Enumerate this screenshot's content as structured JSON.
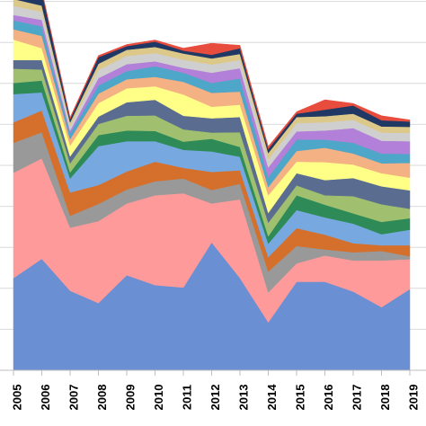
{
  "chart_data": {
    "type": "area",
    "stacked": true,
    "x": [
      "2005",
      "2006",
      "2007",
      "2008",
      "2009",
      "2010",
      "2011",
      "2012",
      "2013",
      "2014",
      "2015",
      "2016",
      "2017",
      "2018",
      "2019"
    ],
    "ylim": [
      0,
      100
    ],
    "grid": true,
    "legend": "none",
    "series": [
      {
        "color": "#6a8fd3",
        "values": [
          22.5,
          27.2,
          19.4,
          16.4,
          23.2,
          20.8,
          20.2,
          31.2,
          22.5,
          11.7,
          21.6,
          21.6,
          19.2,
          15.4,
          19.8
        ]
      },
      {
        "color": "#ff9a9a",
        "values": [
          25.7,
          24.5,
          15.4,
          20.0,
          17.5,
          21.9,
          23.0,
          9.5,
          19.2,
          7.3,
          4.5,
          6.4,
          7.6,
          11.4,
          7.3
        ]
      },
      {
        "color": "#999999",
        "values": [
          7.3,
          6.4,
          2.9,
          4.2,
          3.4,
          3.4,
          3.6,
          3.3,
          3.8,
          5.1,
          4.2,
          1.5,
          2.0,
          2.3,
          0.7
        ]
      },
      {
        "color": "#d4702c",
        "values": [
          5.0,
          5.3,
          5.7,
          4.6,
          4.4,
          4.8,
          2.6,
          4.4,
          3.3,
          3.5,
          4.4,
          3.6,
          2.2,
          1.4,
          2.7
        ]
      },
      {
        "color": "#77a9e0",
        "values": [
          6.9,
          4.4,
          3.4,
          9.5,
          7.4,
          5.0,
          4.4,
          5.0,
          3.3,
          3.3,
          4.4,
          4.2,
          4.8,
          2.7,
          3.8
        ]
      },
      {
        "color": "#2e8b57",
        "values": [
          2.7,
          2.9,
          1.5,
          2.7,
          2.6,
          2.5,
          2.0,
          3.1,
          2.4,
          1.8,
          3.6,
          3.1,
          2.5,
          3.0,
          2.8
        ]
      },
      {
        "color": "#a0c070",
        "values": [
          3.5,
          2.7,
          2.2,
          2.7,
          3.6,
          3.8,
          3.0,
          1.5,
          3.6,
          3.3,
          2.4,
          2.3,
          4.2,
          4.3,
          2.3
        ]
      },
      {
        "color": "#5a6d90",
        "values": [
          2.1,
          2.3,
          1.7,
          1.8,
          3.3,
          3.8,
          3.3,
          3.5,
          3.7,
          2.4,
          3.0,
          3.7,
          4.4,
          4.4,
          4.5
        ]
      },
      {
        "color": "#ffff88",
        "values": [
          5.0,
          2.9,
          2.6,
          3.3,
          3.4,
          3.3,
          5.2,
          2.8,
          3.0,
          4.3,
          2.8,
          4.4,
          3.3,
          3.2,
          3.1
        ]
      },
      {
        "color": "#f4b183",
        "values": [
          2.5,
          3.0,
          1.6,
          2.3,
          2.2,
          2.3,
          3.1,
          3.4,
          3.2,
          2.0,
          2.6,
          3.5,
          2.7,
          2.4,
          3.6
        ]
      },
      {
        "color": "#4ea6c8",
        "values": [
          2.2,
          2.3,
          1.4,
          2.0,
          2.0,
          2.6,
          2.2,
          2.4,
          3.2,
          2.4,
          2.8,
          2.0,
          2.6,
          2.4,
          2.2
        ]
      },
      {
        "color": "#b280d8",
        "values": [
          1.3,
          1.6,
          0.7,
          1.8,
          1.7,
          1.2,
          1.2,
          2.5,
          2.5,
          2.4,
          2.0,
          2.2,
          3.6,
          3.1,
          3.1
        ]
      },
      {
        "color": "#cfcfcf",
        "values": [
          2.2,
          2.0,
          1.0,
          2.0,
          2.0,
          2.0,
          2.0,
          2.0,
          2.0,
          2.0,
          2.0,
          2.0,
          2.0,
          2.0,
          2.0
        ]
      },
      {
        "color": "#dcc98a",
        "values": [
          1.7,
          1.5,
          1.0,
          1.5,
          1.5,
          1.5,
          1.5,
          1.5,
          1.5,
          1.5,
          1.5,
          1.5,
          1.5,
          1.5,
          1.5
        ]
      },
      {
        "color": "#1f3864",
        "values": [
          3.3,
          3.4,
          0.8,
          1.6,
          0.9,
          1.3,
          0.7,
          0.9,
          1.4,
          1.0,
          0.8,
          1.6,
          2.0,
          1.5,
          1.3
        ]
      },
      {
        "color": "#e74c3c",
        "values": [
          0.5,
          0.4,
          0.4,
          0.4,
          0.4,
          0.4,
          0.6,
          2.8,
          0.7,
          0.6,
          0.5,
          2.4,
          0.5,
          1.1,
          0.4
        ]
      }
    ]
  }
}
